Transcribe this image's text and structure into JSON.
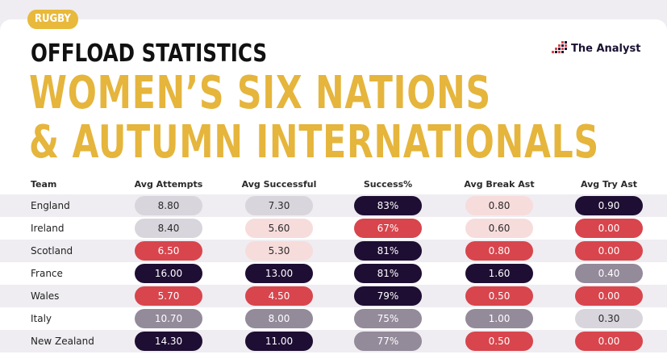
{
  "tag": "RUGBY",
  "subtitle": "OFFLOAD STATISTICS",
  "title_line1": "WOMEN’S SIX NATIONS",
  "title_line2": "& AUTUMN INTERNATIONALS",
  "logo_text": "The Analyst",
  "colors": {
    "gold": "#e5b53c",
    "darkPurple": "#1e0e33",
    "midGray": "#938a9a",
    "lightGray": "#d8d5dc",
    "palePink": "#f7dcdc",
    "red": "#d8454d"
  },
  "chart_data": {
    "type": "table",
    "title": "Offload Statistics — Women’s Six Nations & Autumn Internationals",
    "columns": [
      "Team",
      "Avg Attempts",
      "Avg Successful",
      "Success%",
      "Avg Break Ast",
      "Avg Try Ast"
    ],
    "rows": [
      {
        "team": "England",
        "cells": [
          {
            "text": "8.80",
            "shade": "lightGray"
          },
          {
            "text": "7.30",
            "shade": "lightGray"
          },
          {
            "text": "83%",
            "shade": "darkPurple"
          },
          {
            "text": "0.80",
            "shade": "palePink"
          },
          {
            "text": "0.90",
            "shade": "darkPurple"
          }
        ]
      },
      {
        "team": "Ireland",
        "cells": [
          {
            "text": "8.40",
            "shade": "lightGray"
          },
          {
            "text": "5.60",
            "shade": "palePink"
          },
          {
            "text": "67%",
            "shade": "red"
          },
          {
            "text": "0.60",
            "shade": "palePink"
          },
          {
            "text": "0.00",
            "shade": "red"
          }
        ]
      },
      {
        "team": "Scotland",
        "cells": [
          {
            "text": "6.50",
            "shade": "red"
          },
          {
            "text": "5.30",
            "shade": "palePink"
          },
          {
            "text": "81%",
            "shade": "darkPurple"
          },
          {
            "text": "0.80",
            "shade": "red"
          },
          {
            "text": "0.00",
            "shade": "red"
          }
        ]
      },
      {
        "team": "France",
        "cells": [
          {
            "text": "16.00",
            "shade": "darkPurple"
          },
          {
            "text": "13.00",
            "shade": "darkPurple"
          },
          {
            "text": "81%",
            "shade": "darkPurple"
          },
          {
            "text": "1.60",
            "shade": "darkPurple"
          },
          {
            "text": "0.40",
            "shade": "midGray"
          }
        ]
      },
      {
        "team": "Wales",
        "cells": [
          {
            "text": "5.70",
            "shade": "red"
          },
          {
            "text": "4.50",
            "shade": "red"
          },
          {
            "text": "79%",
            "shade": "darkPurple"
          },
          {
            "text": "0.50",
            "shade": "red"
          },
          {
            "text": "0.00",
            "shade": "red"
          }
        ]
      },
      {
        "team": "Italy",
        "cells": [
          {
            "text": "10.70",
            "shade": "midGray"
          },
          {
            "text": "8.00",
            "shade": "midGray"
          },
          {
            "text": "75%",
            "shade": "midGray"
          },
          {
            "text": "1.00",
            "shade": "midGray"
          },
          {
            "text": "0.30",
            "shade": "lightGray"
          }
        ]
      },
      {
        "team": "New Zealand",
        "cells": [
          {
            "text": "14.30",
            "shade": "darkPurple"
          },
          {
            "text": "11.00",
            "shade": "darkPurple"
          },
          {
            "text": "77%",
            "shade": "midGray"
          },
          {
            "text": "0.50",
            "shade": "red"
          },
          {
            "text": "0.00",
            "shade": "red"
          }
        ]
      }
    ]
  }
}
